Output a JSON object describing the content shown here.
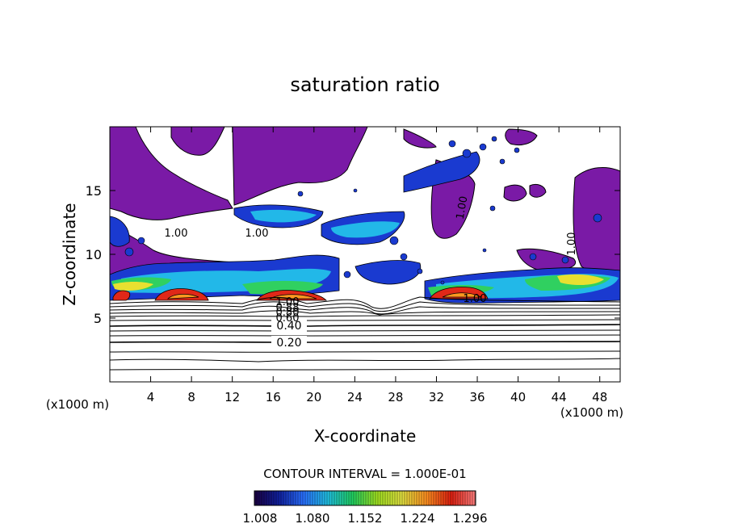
{
  "chart_data": {
    "type": "heatmap",
    "title": "saturation ratio",
    "xlabel": "X-coordinate",
    "ylabel": "Z-coordinate",
    "x_unit_left": "(x1000 m)",
    "x_unit_right": "(x1000 m)",
    "xlim": [
      0,
      50
    ],
    "ylim": [
      0,
      20
    ],
    "x_ticks": [
      "4",
      "8",
      "12",
      "16",
      "20",
      "24",
      "28",
      "32",
      "36",
      "40",
      "44",
      "48"
    ],
    "y_ticks": [
      "5",
      "10",
      "15"
    ],
    "contour_interval_text": "CONTOUR INTERVAL = 1.000E-01",
    "contour_labels": [
      "0.20",
      "0.40",
      "0.60",
      "0.80",
      "0.88",
      "1.00"
    ],
    "colorbar": {
      "labels": [
        "1.008",
        "1.080",
        "1.152",
        "1.224",
        "1.296"
      ],
      "values": [
        1.008,
        1.08,
        1.152,
        1.224,
        1.296
      ],
      "colors": [
        "#1a0040",
        "#1020a0",
        "#2a70ff",
        "#20c0e0",
        "#20d060",
        "#a0e020",
        "#e0e040",
        "#ff9020",
        "#e02010",
        "#ff8080"
      ]
    },
    "supersaturated_color": "#7a1aa6",
    "background_color": "#ffffff",
    "grid": false
  }
}
